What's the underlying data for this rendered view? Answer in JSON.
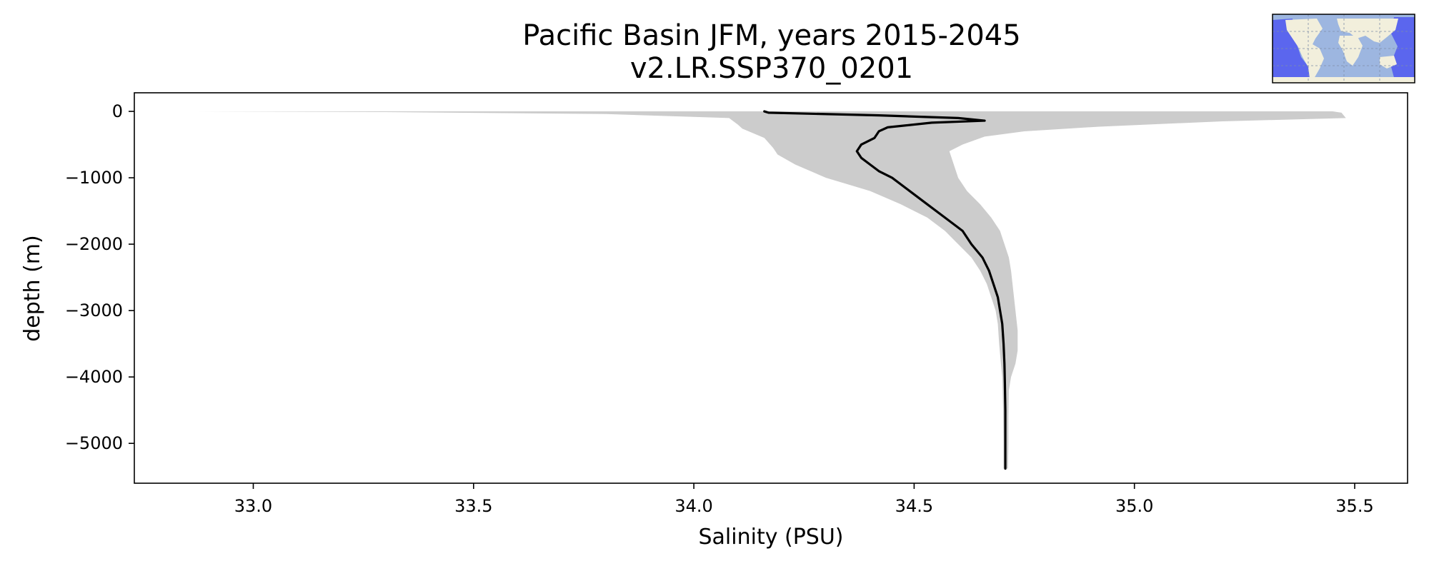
{
  "chart_data": {
    "type": "line",
    "title": "Pacific Basin JFM, years 2015-2045",
    "subtitle": "v2.LR.SSP370_0201",
    "xlabel": "Salinity (PSU)",
    "ylabel": "depth (m)",
    "xlim": [
      32.73,
      35.62
    ],
    "ylim": [
      -5600,
      280
    ],
    "x_ticks": [
      33.0,
      33.5,
      34.0,
      34.5,
      35.0,
      35.5
    ],
    "x_tick_labels": [
      "33.0",
      "33.5",
      "34.0",
      "34.5",
      "35.0",
      "35.5"
    ],
    "y_ticks": [
      0,
      -1000,
      -2000,
      -3000,
      -4000,
      -5000
    ],
    "y_tick_labels": [
      "0",
      "−1000",
      "−2000",
      "−3000",
      "−4000",
      "−5000"
    ],
    "grid": false,
    "series": [
      {
        "kind": "line",
        "color": "#000000",
        "points": [
          [
            34.16,
            0
          ],
          [
            34.17,
            -20
          ],
          [
            34.42,
            -60
          ],
          [
            34.6,
            -100
          ],
          [
            34.66,
            -140
          ],
          [
            34.54,
            -170
          ],
          [
            34.44,
            -240
          ],
          [
            34.42,
            -300
          ],
          [
            34.41,
            -400
          ],
          [
            34.38,
            -500
          ],
          [
            34.37,
            -600
          ],
          [
            34.38,
            -700
          ],
          [
            34.4,
            -800
          ],
          [
            34.42,
            -900
          ],
          [
            34.45,
            -1000
          ],
          [
            34.49,
            -1200
          ],
          [
            34.53,
            -1400
          ],
          [
            34.57,
            -1600
          ],
          [
            34.61,
            -1800
          ],
          [
            34.63,
            -2000
          ],
          [
            34.655,
            -2200
          ],
          [
            34.67,
            -2400
          ],
          [
            34.68,
            -2600
          ],
          [
            34.69,
            -2800
          ],
          [
            34.695,
            -3000
          ],
          [
            34.7,
            -3200
          ],
          [
            34.703,
            -3500
          ],
          [
            34.705,
            -3800
          ],
          [
            34.706,
            -4100
          ],
          [
            34.707,
            -4500
          ],
          [
            34.707,
            -5000
          ],
          [
            34.707,
            -5380
          ]
        ]
      },
      {
        "kind": "band",
        "color": "#cccccc",
        "lower": [
          [
            32.87,
            0
          ],
          [
            33.3,
            -10
          ],
          [
            33.8,
            -40
          ],
          [
            34.08,
            -100
          ],
          [
            34.1,
            -200
          ],
          [
            34.11,
            -260
          ],
          [
            34.16,
            -400
          ],
          [
            34.18,
            -550
          ],
          [
            34.19,
            -650
          ],
          [
            34.23,
            -800
          ],
          [
            34.3,
            -1000
          ],
          [
            34.4,
            -1200
          ],
          [
            34.47,
            -1400
          ],
          [
            34.53,
            -1600
          ],
          [
            34.57,
            -1800
          ],
          [
            34.6,
            -2000
          ],
          [
            34.63,
            -2200
          ],
          [
            34.65,
            -2400
          ],
          [
            34.665,
            -2600
          ],
          [
            34.675,
            -2800
          ],
          [
            34.685,
            -3000
          ],
          [
            34.69,
            -3200
          ],
          [
            34.693,
            -3500
          ],
          [
            34.697,
            -3800
          ],
          [
            34.7,
            -4000
          ],
          [
            34.702,
            -4500
          ],
          [
            34.703,
            -5000
          ],
          [
            34.703,
            -5380
          ]
        ],
        "upper": [
          [
            35.45,
            0
          ],
          [
            35.47,
            -20
          ],
          [
            35.48,
            -100
          ],
          [
            35.2,
            -150
          ],
          [
            34.92,
            -230
          ],
          [
            34.75,
            -300
          ],
          [
            34.66,
            -380
          ],
          [
            34.61,
            -500
          ],
          [
            34.58,
            -600
          ],
          [
            34.59,
            -800
          ],
          [
            34.6,
            -1000
          ],
          [
            34.62,
            -1200
          ],
          [
            34.65,
            -1400
          ],
          [
            34.675,
            -1600
          ],
          [
            34.695,
            -1800
          ],
          [
            34.705,
            -2000
          ],
          [
            34.715,
            -2200
          ],
          [
            34.72,
            -2400
          ],
          [
            34.725,
            -2700
          ],
          [
            34.73,
            -3000
          ],
          [
            34.735,
            -3300
          ],
          [
            34.735,
            -3600
          ],
          [
            34.73,
            -3800
          ],
          [
            34.72,
            -4000
          ],
          [
            34.715,
            -4200
          ],
          [
            34.714,
            -4600
          ],
          [
            34.714,
            -5000
          ],
          [
            34.713,
            -5380
          ]
        ]
      }
    ],
    "inset": {
      "ocean_color": "#9db6e0",
      "land_color": "#f2efdc",
      "highlight_color": "#5b66ee",
      "frame_color": "#000000"
    }
  }
}
